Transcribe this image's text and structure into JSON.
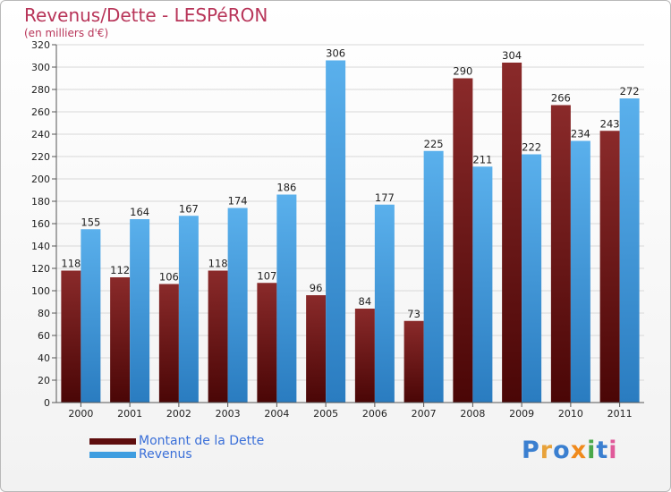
{
  "header": {
    "title": "Revenus/Dette - LESPéRON",
    "subtitle": "(en milliers d'€)"
  },
  "chart_data": {
    "type": "bar",
    "title": "Revenus/Dette - LESPéRON",
    "ylabel": "(en milliers d'€)",
    "xlabel": "",
    "categories": [
      "2000",
      "2001",
      "2002",
      "2003",
      "2004",
      "2005",
      "2006",
      "2007",
      "2008",
      "2009",
      "2010",
      "2011"
    ],
    "series": [
      {
        "name": "Montant de la Dette",
        "color": "#7a1c1c",
        "values": [
          118,
          112,
          106,
          118,
          107,
          96,
          84,
          73,
          290,
          304,
          266,
          243
        ]
      },
      {
        "name": "Revenus",
        "color": "#3e9de0",
        "values": [
          155,
          164,
          167,
          174,
          186,
          306,
          177,
          225,
          211,
          222,
          234,
          272
        ]
      }
    ],
    "ylim": [
      0,
      320
    ],
    "yticks": [
      0,
      20,
      40,
      60,
      80,
      100,
      120,
      140,
      160,
      180,
      200,
      220,
      240,
      260,
      280,
      300,
      320
    ],
    "grid": true,
    "legend_position": "bottom-left"
  },
  "legend": {
    "items": [
      {
        "label": "Montant de la Dette",
        "color": "#5e0d0d"
      },
      {
        "label": "Revenus",
        "color": "#3e9de0"
      }
    ]
  },
  "logo": {
    "letters": [
      {
        "char": "P",
        "color": "#3a7fd0"
      },
      {
        "char": "r",
        "color": "#e8a23a"
      },
      {
        "char": "o",
        "color": "#3a7fd0"
      },
      {
        "char": "x",
        "color": "#f08a1c"
      },
      {
        "char": "i",
        "color": "#4aa84a"
      },
      {
        "char": "t",
        "color": "#3a7fd0"
      },
      {
        "char": "i",
        "color": "#e05a9a"
      }
    ]
  }
}
